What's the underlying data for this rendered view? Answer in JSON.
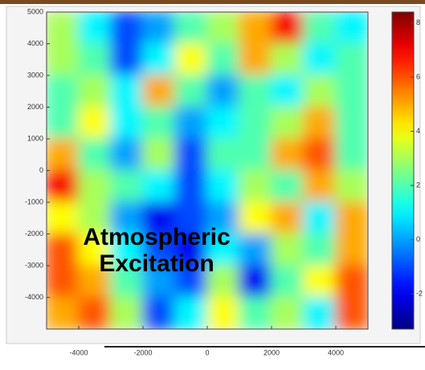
{
  "chart_data": {
    "type": "heatmap",
    "annotation": [
      "Atmospheric",
      "Excitation"
    ],
    "xlim": [
      -5000,
      5000
    ],
    "ylim": [
      -5000,
      5000
    ],
    "xticks": [
      -4000,
      -2000,
      0,
      2000,
      4000
    ],
    "yticks": [
      5000,
      4000,
      3000,
      2000,
      1000,
      0,
      -1000,
      -2000,
      -3000,
      -4000
    ],
    "colormap": "jet",
    "zlim": [
      -3.3,
      8.4
    ],
    "colorbar_ticks": [
      8,
      6,
      4,
      2,
      0,
      -2
    ],
    "z": [
      [
        3,
        1,
        -1,
        0,
        2,
        3,
        5,
        7,
        2,
        1
      ],
      [
        3,
        2,
        -1,
        1,
        4,
        2,
        5,
        3,
        1,
        2
      ],
      [
        2,
        3,
        1,
        5,
        2,
        0,
        2,
        1,
        3,
        2
      ],
      [
        2,
        4,
        1,
        2,
        0,
        1,
        2,
        3,
        5,
        2
      ],
      [
        5,
        2,
        0,
        3,
        -1,
        2,
        2,
        5,
        6,
        2
      ],
      [
        7,
        3,
        2,
        1,
        -1,
        1,
        3,
        2,
        5,
        3
      ],
      [
        4,
        3,
        0,
        -2,
        -1,
        0,
        4,
        5,
        1,
        5
      ],
      [
        6,
        4,
        1,
        -1,
        -2,
        1,
        0,
        3,
        2,
        5
      ],
      [
        6,
        5,
        2,
        0,
        -1,
        3,
        -2,
        2,
        4,
        6
      ],
      [
        5,
        6,
        3,
        -1,
        1,
        4,
        2,
        3,
        1,
        6
      ]
    ]
  }
}
